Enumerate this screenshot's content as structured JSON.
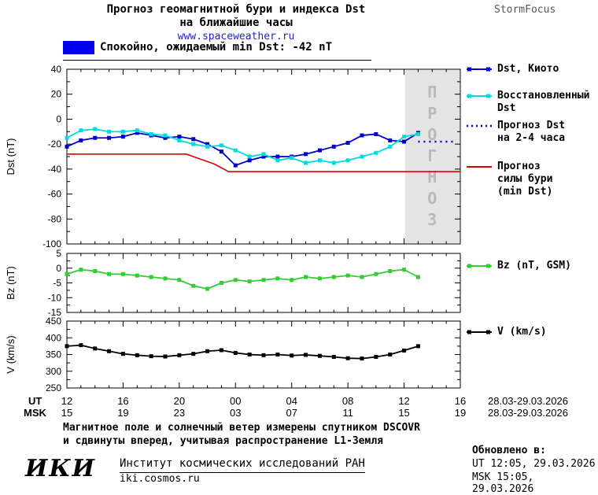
{
  "header": {
    "title_line1": "Прогноз геомагнитной бури и индекса Dst",
    "title_line2": "на ближайшие часы",
    "site": "www.spaceweather.ru",
    "brand": "StormFocus"
  },
  "status_banner": {
    "label": "Спокойно, ожидаемый min Dst: -42 nT",
    "swatch_color": "#0000ee"
  },
  "legends": {
    "dst_kyoto": "Dst, Киото",
    "dst_restored": "Восстановленный\nDst",
    "dst_forecast": "Прогноз Dst\nна 2-4 часа",
    "storm_forecast": "Прогноз\nсилы бури\n(min Dst)",
    "bz": "Bz (nT, GSM)",
    "v": "V (km/s)"
  },
  "axis": {
    "ut_label": "UT",
    "msk_label": "MSK",
    "ut_ticks": [
      "12",
      "16",
      "20",
      "00",
      "04",
      "08",
      "12",
      "16"
    ],
    "msk_ticks": [
      "15",
      "19",
      "23",
      "03",
      "07",
      "11",
      "15",
      "19"
    ],
    "date_range": "28.03-29.03.2026"
  },
  "footer": {
    "note_line1": "Магнитное поле и солнечный ветер измерены спутником DSCOVR",
    "note_line2": "и сдвинуты вперед, учитывая распространение L1-Земля",
    "logo": "ИКИ",
    "institute": "Институт космических исследований РАН",
    "site": "iki.cosmos.ru",
    "updated_label": "Обновлено в:",
    "updated_ut": "UT  12:05, 29.03.2026",
    "updated_msk": "MSK 15:05, 29.03.2026"
  },
  "chart_data": [
    {
      "type": "line",
      "ylabel": "Dst (nT)",
      "ylim": [
        -100,
        40
      ],
      "yticks": [
        40,
        20,
        0,
        -20,
        -40,
        -60,
        -80,
        -100
      ],
      "xlim": [
        0,
        28
      ],
      "x_axis": "hours since 12 UT 28.03.2026",
      "shade": {
        "from": 24,
        "to": 28,
        "label": "ПРОГНОЗ",
        "color": "#e4e4e4",
        "text_color": "#b9b9b9"
      },
      "series": [
        {
          "name": "Dst, Киото",
          "color": "#0000cc",
          "marker": true,
          "x0": 0,
          "dx": 1,
          "values": [
            -22,
            -17,
            -15,
            -15,
            -14,
            -11,
            -13,
            -15,
            -14,
            -16,
            -20,
            -26,
            -37,
            -33,
            -30,
            -30,
            -30,
            -28,
            -25,
            -22,
            -19,
            -13,
            -12,
            -17,
            -18,
            -11
          ]
        },
        {
          "name": "Восстановленный Dst",
          "color": "#00dcdc",
          "marker": true,
          "x0": 0,
          "dx": 1,
          "values": [
            -15,
            -9,
            -8,
            -10,
            -10,
            -9,
            -12,
            -13,
            -17,
            -20,
            -22,
            -21,
            -25,
            -30,
            -28,
            -33,
            -31,
            -35,
            -33,
            -35,
            -33,
            -30,
            -27,
            -22,
            -14,
            -12
          ]
        },
        {
          "name": "Прогноз Dst на 2-4 часа",
          "color": "#0000cc",
          "style": "dotted",
          "x": [
            25,
            27.5
          ],
          "values": [
            -18,
            -18
          ]
        },
        {
          "name": "Прогноз силы бури (min Dst)",
          "color": "#dd0000",
          "x": [
            0,
            8.5,
            10.5,
            11.5,
            28
          ],
          "values": [
            -28,
            -28,
            -36,
            -42,
            -42
          ]
        }
      ]
    },
    {
      "type": "line",
      "ylabel": "Bz (nT)",
      "ylim": [
        -15,
        5
      ],
      "yticks": [
        5,
        0,
        -5,
        -10,
        -15
      ],
      "xlim": [
        0,
        28
      ],
      "series": [
        {
          "name": "Bz (nT, GSM)",
          "color": "#33cc33",
          "marker": true,
          "x0": 0,
          "dx": 1,
          "values": [
            -2,
            -0.5,
            -1,
            -2,
            -2,
            -2.5,
            -3,
            -3.5,
            -4,
            -6,
            -7,
            -5,
            -4,
            -4.5,
            -4,
            -3.5,
            -4,
            -3,
            -3.5,
            -3,
            -2.5,
            -3,
            -2,
            -1,
            -0.5,
            -3
          ]
        }
      ]
    },
    {
      "type": "line",
      "ylabel": "V (km/s)",
      "ylim": [
        250,
        450
      ],
      "yticks": [
        450,
        400,
        350,
        300,
        250
      ],
      "xlim": [
        0,
        28
      ],
      "series": [
        {
          "name": "V (km/s)",
          "color": "#000000",
          "marker": true,
          "x0": 0,
          "dx": 1,
          "values": [
            375,
            378,
            368,
            360,
            352,
            348,
            345,
            344,
            348,
            352,
            360,
            363,
            355,
            350,
            348,
            350,
            347,
            349,
            346,
            343,
            339,
            338,
            343,
            350,
            362,
            375
          ]
        }
      ]
    }
  ]
}
